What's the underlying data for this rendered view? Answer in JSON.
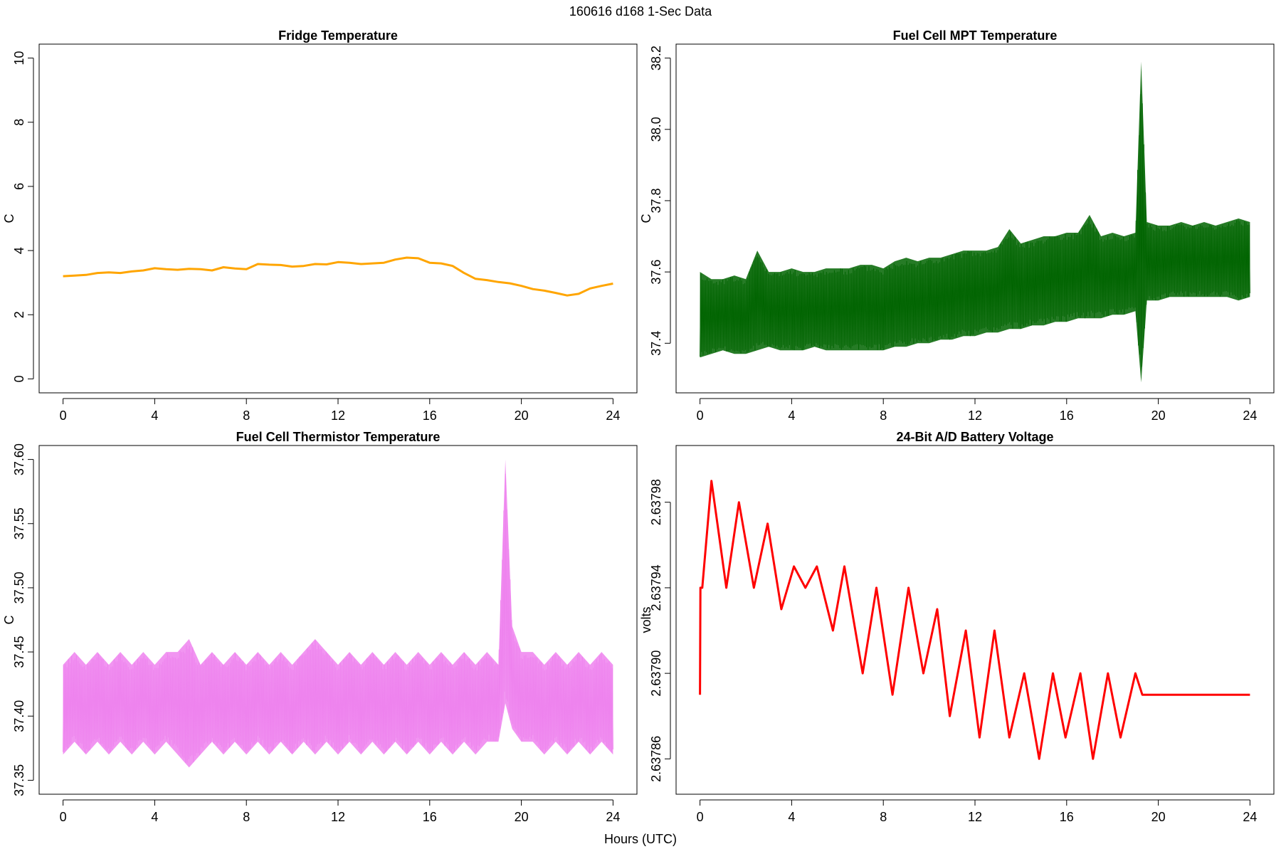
{
  "figure": {
    "title": "160616   d168   1-Sec Data",
    "shared_xlabel": "Hours (UTC)"
  },
  "chart_data": [
    {
      "id": "fridge",
      "type": "line",
      "title": "Fridge Temperature",
      "xlabel": "",
      "ylabel": "C",
      "xlim": [
        0,
        24
      ],
      "ylim": [
        0,
        10
      ],
      "x_ticks": [
        "0",
        "4",
        "8",
        "12",
        "16",
        "20",
        "24"
      ],
      "y_ticks": [
        "0",
        "2",
        "4",
        "6",
        "8",
        "10"
      ],
      "color": "#FFA500",
      "series": [
        {
          "name": "Fridge Temperature",
          "x": [
            0,
            0.5,
            1,
            1.5,
            2,
            2.5,
            3,
            3.5,
            4,
            4.5,
            5,
            5.5,
            6,
            6.5,
            7,
            7.5,
            8,
            8.5,
            9,
            9.5,
            10,
            10.5,
            11,
            11.5,
            12,
            12.5,
            13,
            13.5,
            14,
            14.5,
            15,
            15.5,
            16,
            16.5,
            17,
            17.5,
            18,
            18.5,
            19,
            19.5,
            20,
            20.5,
            21,
            21.5,
            22,
            22.5,
            23,
            23.5,
            24
          ],
          "y": [
            3.2,
            3.22,
            3.24,
            3.3,
            3.32,
            3.3,
            3.35,
            3.38,
            3.45,
            3.42,
            3.4,
            3.43,
            3.42,
            3.38,
            3.48,
            3.44,
            3.42,
            3.58,
            3.56,
            3.55,
            3.5,
            3.52,
            3.58,
            3.57,
            3.64,
            3.62,
            3.58,
            3.6,
            3.62,
            3.72,
            3.78,
            3.76,
            3.62,
            3.6,
            3.52,
            3.3,
            3.12,
            3.08,
            3.02,
            2.98,
            2.9,
            2.8,
            2.75,
            2.68,
            2.6,
            2.65,
            2.82,
            2.9,
            2.97
          ]
        }
      ]
    },
    {
      "id": "mpt",
      "type": "line",
      "title": "Fuel Cell MPT Temperature",
      "xlabel": "",
      "ylabel": "C",
      "xlim": [
        0,
        24
      ],
      "ylim": [
        37.3,
        38.2
      ],
      "x_ticks": [
        "0",
        "4",
        "8",
        "12",
        "16",
        "20",
        "24"
      ],
      "y_ticks": [
        "37.4",
        "37.6",
        "37.8",
        "38.0",
        "38.2"
      ],
      "color": "#006400",
      "series": [
        {
          "name": "Fuel Cell MPT Temperature",
          "x": [
            0,
            0.5,
            1,
            1.5,
            2,
            2.5,
            3,
            3.5,
            4,
            4.5,
            5,
            5.5,
            6,
            6.5,
            7,
            7.5,
            8,
            8.5,
            9,
            9.5,
            10,
            10.5,
            11,
            11.5,
            12,
            12.5,
            13,
            13.5,
            14,
            14.5,
            15,
            15.5,
            16,
            16.5,
            17,
            17.5,
            18,
            18.5,
            19,
            19.25,
            19.5,
            20,
            20.5,
            21,
            21.5,
            22,
            22.5,
            23,
            23.5,
            24
          ],
          "y_min": [
            37.36,
            37.37,
            37.38,
            37.37,
            37.37,
            37.38,
            37.39,
            37.38,
            37.38,
            37.38,
            37.39,
            37.38,
            37.38,
            37.38,
            37.38,
            37.38,
            37.38,
            37.39,
            37.39,
            37.4,
            37.4,
            37.41,
            37.41,
            37.42,
            37.42,
            37.43,
            37.43,
            37.44,
            37.44,
            37.45,
            37.45,
            37.46,
            37.46,
            37.47,
            37.47,
            37.47,
            37.48,
            37.48,
            37.49,
            37.29,
            37.52,
            37.52,
            37.53,
            37.53,
            37.53,
            37.53,
            37.53,
            37.53,
            37.52,
            37.53
          ],
          "y_max": [
            37.6,
            37.58,
            37.58,
            37.59,
            37.58,
            37.66,
            37.6,
            37.6,
            37.61,
            37.6,
            37.6,
            37.61,
            37.61,
            37.61,
            37.62,
            37.62,
            37.61,
            37.63,
            37.64,
            37.63,
            37.64,
            37.64,
            37.65,
            37.66,
            37.66,
            37.66,
            37.67,
            37.72,
            37.68,
            37.69,
            37.7,
            37.7,
            37.71,
            37.71,
            37.76,
            37.7,
            37.71,
            37.7,
            37.71,
            38.19,
            37.74,
            37.73,
            37.73,
            37.74,
            37.73,
            37.74,
            37.73,
            37.74,
            37.75,
            37.74
          ]
        }
      ]
    },
    {
      "id": "thermistor",
      "type": "line",
      "title": "Fuel Cell Thermistor Temperature",
      "xlabel": "",
      "ylabel": "C",
      "xlim": [
        0,
        24
      ],
      "ylim": [
        37.35,
        37.6
      ],
      "x_ticks": [
        "0",
        "4",
        "8",
        "12",
        "16",
        "20",
        "24"
      ],
      "y_ticks": [
        "37.35",
        "37.40",
        "37.45",
        "37.50",
        "37.55",
        "37.60"
      ],
      "color": "#EE82EE",
      "series": [
        {
          "name": "Fuel Cell Thermistor Temperature",
          "x": [
            0,
            0.5,
            1,
            1.5,
            2,
            2.5,
            3,
            3.5,
            4,
            4.5,
            5,
            5.5,
            6,
            6.5,
            7,
            7.5,
            8,
            8.5,
            9,
            9.5,
            10,
            10.5,
            11,
            11.5,
            12,
            12.5,
            13,
            13.5,
            14,
            14.5,
            15,
            15.5,
            16,
            16.5,
            17,
            17.5,
            18,
            18.5,
            19,
            19.3,
            19.6,
            20,
            20.5,
            21,
            21.5,
            22,
            22.5,
            23,
            23.5,
            24
          ],
          "y_min": [
            37.37,
            37.38,
            37.37,
            37.38,
            37.37,
            37.38,
            37.37,
            37.38,
            37.37,
            37.38,
            37.37,
            37.36,
            37.37,
            37.38,
            37.37,
            37.38,
            37.37,
            37.38,
            37.37,
            37.38,
            37.37,
            37.38,
            37.37,
            37.38,
            37.37,
            37.38,
            37.37,
            37.38,
            37.37,
            37.38,
            37.37,
            37.38,
            37.37,
            37.38,
            37.37,
            37.38,
            37.37,
            37.38,
            37.38,
            37.41,
            37.39,
            37.38,
            37.38,
            37.37,
            37.38,
            37.37,
            37.38,
            37.37,
            37.38,
            37.37
          ],
          "y_max": [
            37.44,
            37.45,
            37.44,
            37.45,
            37.44,
            37.45,
            37.44,
            37.45,
            37.44,
            37.45,
            37.45,
            37.46,
            37.44,
            37.45,
            37.44,
            37.45,
            37.44,
            37.45,
            37.44,
            37.45,
            37.44,
            37.45,
            37.46,
            37.45,
            37.44,
            37.45,
            37.44,
            37.45,
            37.44,
            37.45,
            37.44,
            37.45,
            37.44,
            37.45,
            37.44,
            37.45,
            37.44,
            37.45,
            37.44,
            37.6,
            37.47,
            37.45,
            37.45,
            37.44,
            37.45,
            37.44,
            37.45,
            37.44,
            37.45,
            37.44
          ]
        }
      ]
    },
    {
      "id": "battery",
      "type": "line",
      "title": "24-Bit A/D Battery Voltage",
      "xlabel": "",
      "ylabel": "volts",
      "xlim": [
        0,
        24
      ],
      "ylim": [
        2.63785,
        2.638
      ],
      "x_ticks": [
        "0",
        "4",
        "8",
        "12",
        "16",
        "20",
        "24"
      ],
      "y_ticks": [
        "2.63786",
        "2.63790",
        "2.63794",
        "2.63798"
      ],
      "color": "#FF0000",
      "series": [
        {
          "name": "24-Bit A/D Battery Voltage",
          "x": [
            0,
            0.02,
            0.1,
            0.5,
            1.15,
            1.7,
            2.35,
            2.95,
            3.55,
            4.1,
            4.6,
            5.1,
            5.8,
            6.3,
            7.1,
            7.7,
            8.4,
            9.1,
            9.75,
            10.35,
            10.9,
            11.6,
            12.2,
            12.85,
            13.5,
            14.15,
            14.8,
            15.4,
            15.95,
            16.6,
            17.15,
            17.8,
            18.35,
            19.0,
            19.3,
            19.4,
            24
          ],
          "y": [
            2.63789,
            2.63794,
            2.63794,
            2.63799,
            2.63794,
            2.63798,
            2.63794,
            2.63797,
            2.63793,
            2.63795,
            2.63794,
            2.63795,
            2.63792,
            2.63795,
            2.6379,
            2.63794,
            2.63789,
            2.63794,
            2.6379,
            2.63793,
            2.63788,
            2.63792,
            2.63787,
            2.63792,
            2.63787,
            2.6379,
            2.63786,
            2.6379,
            2.63787,
            2.6379,
            2.63786,
            2.6379,
            2.63787,
            2.6379,
            2.63789,
            2.63789,
            2.63789
          ]
        }
      ]
    }
  ]
}
